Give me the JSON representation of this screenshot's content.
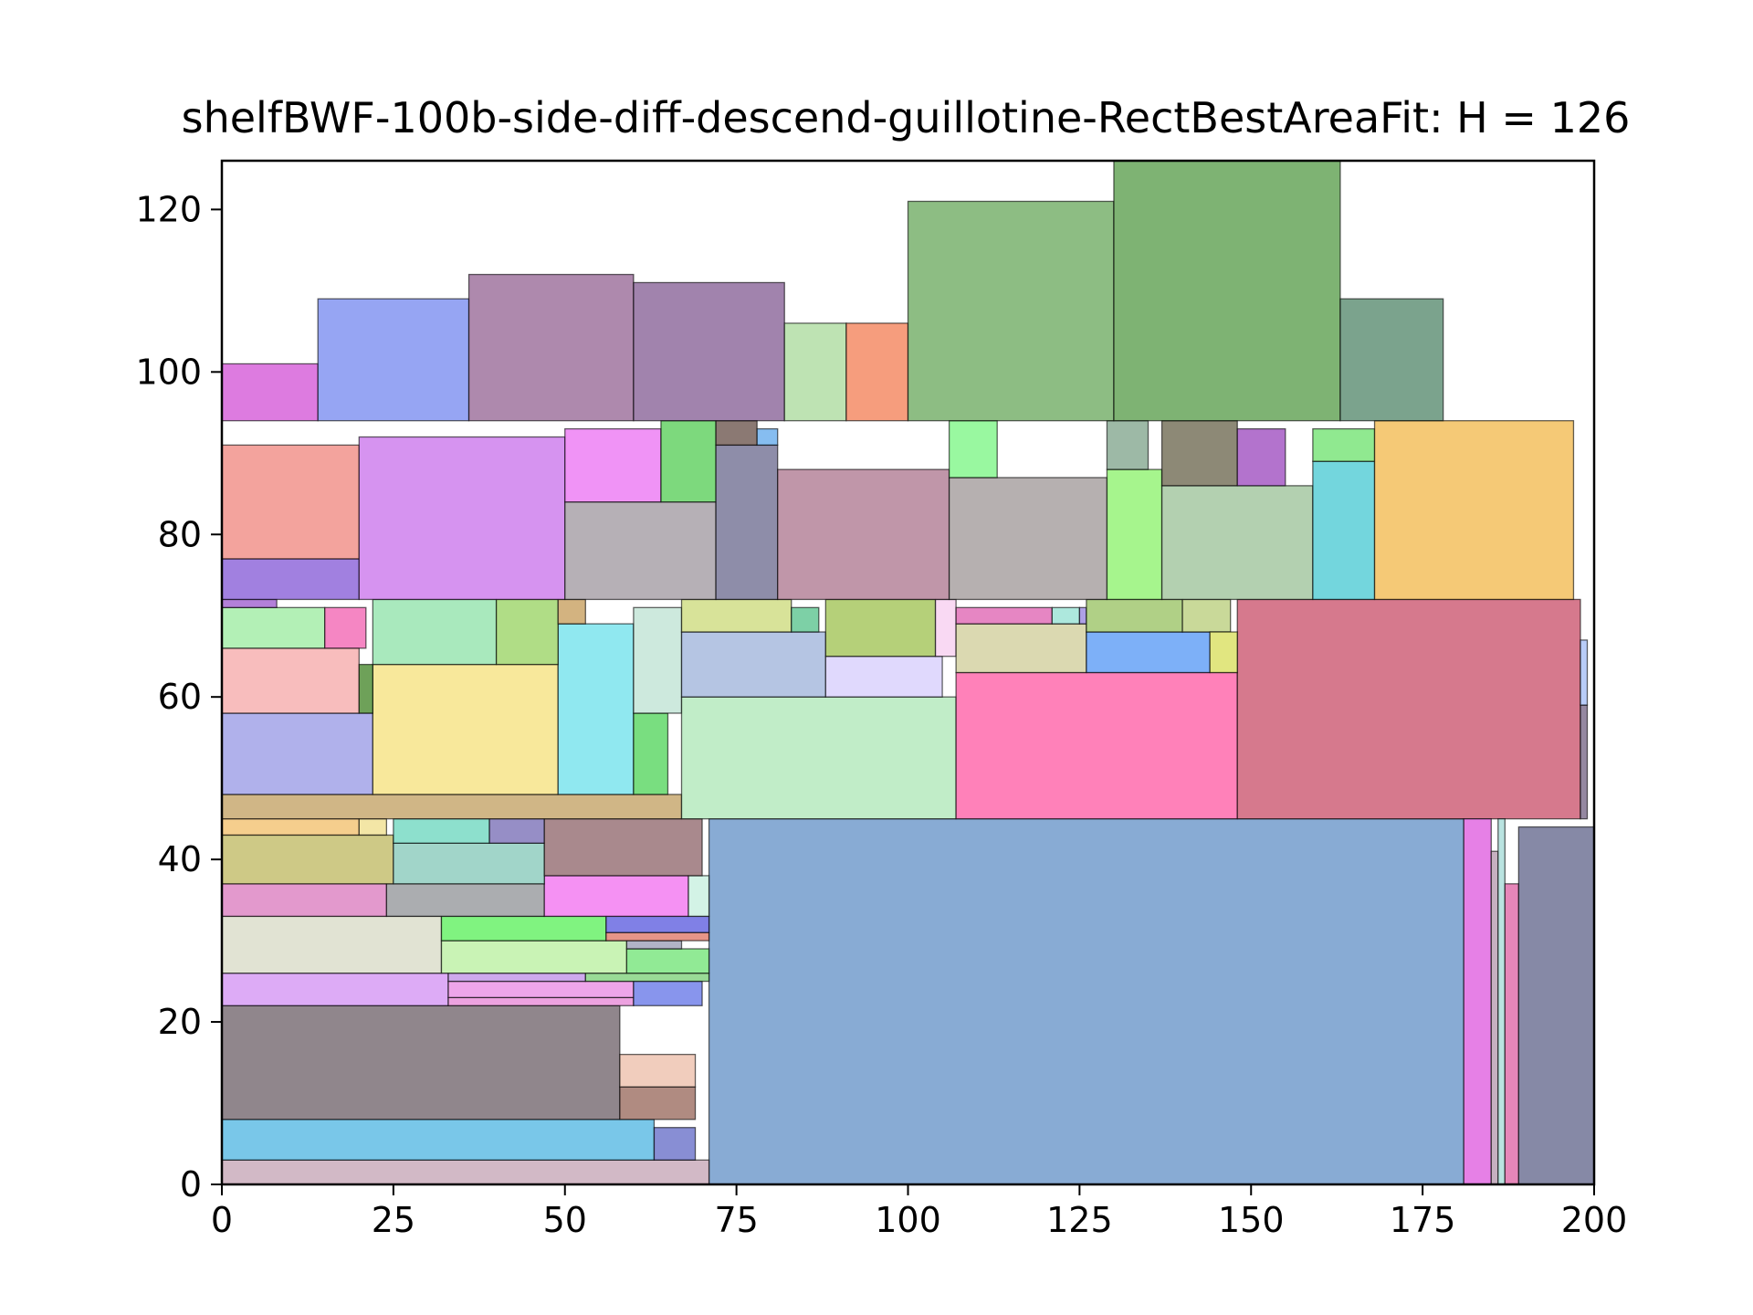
{
  "chart_data": {
    "type": "rectangle-packing",
    "title": "shelfBWF-100b-side-diff-descend-guillotine-RectBestAreaFit: H = 126",
    "xlabel": "",
    "ylabel": "",
    "xlim": [
      0,
      200
    ],
    "ylim": [
      0,
      126
    ],
    "xticks": [
      0,
      25,
      50,
      75,
      100,
      125,
      150,
      175,
      200
    ],
    "yticks": [
      0,
      20,
      40,
      60,
      80,
      100,
      120
    ],
    "xtick_labels": [
      "0",
      "25",
      "50",
      "75",
      "100",
      "125",
      "150",
      "175",
      "200"
    ],
    "ytick_labels": [
      "0",
      "20",
      "40",
      "60",
      "80",
      "100",
      "120"
    ],
    "grid": false,
    "rects": [
      {
        "x": 71,
        "y": 0,
        "w": 110,
        "h": 45,
        "color": "#6a96c9"
      },
      {
        "x": 0,
        "y": 0,
        "w": 71,
        "h": 3,
        "color": "#c7a8b8"
      },
      {
        "x": 0,
        "y": 3,
        "w": 63,
        "h": 5,
        "color": "#58b9e4"
      },
      {
        "x": 63,
        "y": 3,
        "w": 6,
        "h": 4,
        "color": "#6a72c9"
      },
      {
        "x": 0,
        "y": 8,
        "w": 58,
        "h": 14,
        "color": "#74686f"
      },
      {
        "x": 58,
        "y": 8,
        "w": 11,
        "h": 4,
        "color": "#9c6e61"
      },
      {
        "x": 58,
        "y": 12,
        "w": 11,
        "h": 4,
        "color": "#edc0ad"
      },
      {
        "x": 0,
        "y": 22,
        "w": 33,
        "h": 4,
        "color": "#d496f4"
      },
      {
        "x": 33,
        "y": 22,
        "w": 27,
        "h": 1,
        "color": "#e88bd8"
      },
      {
        "x": 33,
        "y": 23,
        "w": 27,
        "h": 2,
        "color": "#ea8fe5"
      },
      {
        "x": 60,
        "y": 22,
        "w": 10,
        "h": 3,
        "color": "#6a7ae8"
      },
      {
        "x": 33,
        "y": 25,
        "w": 20,
        "h": 1,
        "color": "#c294e8"
      },
      {
        "x": 53,
        "y": 25,
        "w": 18,
        "h": 1,
        "color": "#7fd27c"
      },
      {
        "x": 0,
        "y": 26,
        "w": 32,
        "h": 7,
        "color": "#dadcc8"
      },
      {
        "x": 32,
        "y": 26,
        "w": 27,
        "h": 4,
        "color": "#bcf0a2"
      },
      {
        "x": 59,
        "y": 26,
        "w": 12,
        "h": 3,
        "color": "#76e57b"
      },
      {
        "x": 59,
        "y": 29,
        "w": 8,
        "h": 1,
        "color": "#9ea0b8"
      },
      {
        "x": 32,
        "y": 30,
        "w": 24,
        "h": 3,
        "color": "#60f060"
      },
      {
        "x": 56,
        "y": 30,
        "w": 15,
        "h": 1,
        "color": "#e07a6a"
      },
      {
        "x": 56,
        "y": 31,
        "w": 15,
        "h": 2,
        "color": "#6060e0"
      },
      {
        "x": 0,
        "y": 33,
        "w": 24,
        "h": 4,
        "color": "#dc80c0"
      },
      {
        "x": 24,
        "y": 33,
        "w": 23,
        "h": 4,
        "color": "#96989c"
      },
      {
        "x": 47,
        "y": 33,
        "w": 21,
        "h": 5,
        "color": "#f276f0"
      },
      {
        "x": 68,
        "y": 33,
        "w": 3,
        "h": 5,
        "color": "#c8f0e0"
      },
      {
        "x": 0,
        "y": 37,
        "w": 25,
        "h": 6,
        "color": "#c2bc68"
      },
      {
        "x": 25,
        "y": 37,
        "w": 22,
        "h": 5,
        "color": "#8acbbc"
      },
      {
        "x": 25,
        "y": 42,
        "w": 14,
        "h": 3,
        "color": "#70d8c0"
      },
      {
        "x": 39,
        "y": 42,
        "w": 8,
        "h": 3,
        "color": "#7c72b8"
      },
      {
        "x": 47,
        "y": 38,
        "w": 23,
        "h": 7,
        "color": "#946c70"
      },
      {
        "x": 0,
        "y": 43,
        "w": 20,
        "h": 2,
        "color": "#f2c270"
      },
      {
        "x": 20,
        "y": 43,
        "w": 4,
        "h": 2,
        "color": "#f0e090"
      },
      {
        "x": 0,
        "y": 45,
        "w": 67,
        "h": 3,
        "color": "#c4a468"
      },
      {
        "x": 0,
        "y": 48,
        "w": 22,
        "h": 10,
        "color": "#9c9ee6"
      },
      {
        "x": 22,
        "y": 48,
        "w": 27,
        "h": 16,
        "color": "#f6e282"
      },
      {
        "x": 49,
        "y": 48,
        "w": 11,
        "h": 21,
        "color": "#74e2ec"
      },
      {
        "x": 60,
        "y": 48,
        "w": 5,
        "h": 10,
        "color": "#58d660"
      },
      {
        "x": 60,
        "y": 58,
        "w": 7,
        "h": 13,
        "color": "#c0e4d4"
      },
      {
        "x": 0,
        "y": 58,
        "w": 20,
        "h": 8,
        "color": "#f6acac"
      },
      {
        "x": 20,
        "y": 58,
        "w": 2,
        "h": 6,
        "color": "#4a8a30"
      },
      {
        "x": 0,
        "y": 66,
        "w": 15,
        "h": 5,
        "color": "#a0eca4"
      },
      {
        "x": 15,
        "y": 66,
        "w": 6,
        "h": 5,
        "color": "#f268b4"
      },
      {
        "x": 22,
        "y": 64,
        "w": 18,
        "h": 8,
        "color": "#94e4ac"
      },
      {
        "x": 40,
        "y": 64,
        "w": 9,
        "h": 8,
        "color": "#9cd468"
      },
      {
        "x": 49,
        "y": 69,
        "w": 4,
        "h": 3,
        "color": "#c8a060"
      },
      {
        "x": 0,
        "y": 71,
        "w": 8,
        "h": 1,
        "color": "#a060d0"
      },
      {
        "x": 67,
        "y": 45,
        "w": 40,
        "h": 15,
        "color": "#b2e8ba"
      },
      {
        "x": 107,
        "y": 45,
        "w": 41,
        "h": 18,
        "color": "#ff62a8"
      },
      {
        "x": 148,
        "y": 45,
        "w": 50,
        "h": 27,
        "color": "#cc5870"
      },
      {
        "x": 67,
        "y": 60,
        "w": 21,
        "h": 8,
        "color": "#a2b6dc"
      },
      {
        "x": 88,
        "y": 60,
        "w": 17,
        "h": 5,
        "color": "#d8d0fc"
      },
      {
        "x": 67,
        "y": 68,
        "w": 16,
        "h": 4,
        "color": "#cedc80"
      },
      {
        "x": 83,
        "y": 68,
        "w": 4,
        "h": 3,
        "color": "#5cc490"
      },
      {
        "x": 88,
        "y": 65,
        "w": 16,
        "h": 7,
        "color": "#a2c458"
      },
      {
        "x": 104,
        "y": 65,
        "w": 3,
        "h": 7,
        "color": "#f8d0f0"
      },
      {
        "x": 107,
        "y": 63,
        "w": 19,
        "h": 6,
        "color": "#d2d09e"
      },
      {
        "x": 107,
        "y": 69,
        "w": 14,
        "h": 2,
        "color": "#e068b4"
      },
      {
        "x": 121,
        "y": 69,
        "w": 4,
        "h": 2,
        "color": "#98e2d4"
      },
      {
        "x": 125,
        "y": 69,
        "w": 1,
        "h": 2,
        "color": "#9a8ae0"
      },
      {
        "x": 126,
        "y": 63,
        "w": 18,
        "h": 5,
        "color": "#5c9cf6"
      },
      {
        "x": 126,
        "y": 68,
        "w": 14,
        "h": 4,
        "color": "#9cc468"
      },
      {
        "x": 140,
        "y": 68,
        "w": 7,
        "h": 4,
        "color": "#bcd080"
      },
      {
        "x": 144,
        "y": 63,
        "w": 4,
        "h": 5,
        "color": "#dae060"
      },
      {
        "x": 181,
        "y": 0,
        "w": 4,
        "h": 45,
        "color": "#e060e0"
      },
      {
        "x": 185,
        "y": 0,
        "w": 1,
        "h": 41,
        "color": "#b89cb0"
      },
      {
        "x": 186,
        "y": 0,
        "w": 1,
        "h": 45,
        "color": "#a8dcd8"
      },
      {
        "x": 187,
        "y": 0,
        "w": 2,
        "h": 37,
        "color": "#e068a8"
      },
      {
        "x": 189,
        "y": 0,
        "w": 12,
        "h": 44,
        "color": "#686c90"
      },
      {
        "x": 198,
        "y": 45,
        "w": 1,
        "h": 14,
        "color": "#7a6a8a"
      },
      {
        "x": 198,
        "y": 59,
        "w": 1,
        "h": 8,
        "color": "#a8c0f8"
      },
      {
        "x": 0,
        "y": 72,
        "w": 20,
        "h": 5,
        "color": "#8a60d8"
      },
      {
        "x": 0,
        "y": 77,
        "w": 20,
        "h": 14,
        "color": "#f08c84"
      },
      {
        "x": 20,
        "y": 72,
        "w": 30,
        "h": 20,
        "color": "#cc78ec"
      },
      {
        "x": 50,
        "y": 72,
        "w": 22,
        "h": 12,
        "color": "#a49ca4"
      },
      {
        "x": 50,
        "y": 84,
        "w": 14,
        "h": 9,
        "color": "#ec78f4"
      },
      {
        "x": 64,
        "y": 84,
        "w": 8,
        "h": 10,
        "color": "#5cd05c"
      },
      {
        "x": 72,
        "y": 72,
        "w": 9,
        "h": 19,
        "color": "#727094"
      },
      {
        "x": 72,
        "y": 91,
        "w": 6,
        "h": 3,
        "color": "#6e5850"
      },
      {
        "x": 78,
        "y": 91,
        "w": 3,
        "h": 2,
        "color": "#68acec"
      },
      {
        "x": 81,
        "y": 72,
        "w": 25,
        "h": 16,
        "color": "#b07c94"
      },
      {
        "x": 106,
        "y": 72,
        "w": 23,
        "h": 15,
        "color": "#a49c9c"
      },
      {
        "x": 106,
        "y": 87,
        "w": 7,
        "h": 7,
        "color": "#80f688"
      },
      {
        "x": 129,
        "y": 72,
        "w": 8,
        "h": 16,
        "color": "#90f270"
      },
      {
        "x": 129,
        "y": 88,
        "w": 6,
        "h": 6,
        "color": "#84a890"
      },
      {
        "x": 137,
        "y": 72,
        "w": 22,
        "h": 14,
        "color": "#a0c49c"
      },
      {
        "x": 137,
        "y": 86,
        "w": 11,
        "h": 8,
        "color": "#706c54"
      },
      {
        "x": 148,
        "y": 86,
        "w": 7,
        "h": 7,
        "color": "#a050c0"
      },
      {
        "x": 159,
        "y": 72,
        "w": 9,
        "h": 17,
        "color": "#50ccd4"
      },
      {
        "x": 159,
        "y": 89,
        "w": 9,
        "h": 4,
        "color": "#74e474"
      },
      {
        "x": 168,
        "y": 72,
        "w": 29,
        "h": 22,
        "color": "#f2bc54"
      },
      {
        "x": 0,
        "y": 94,
        "w": 14,
        "h": 7,
        "color": "#d45ad8"
      },
      {
        "x": 14,
        "y": 94,
        "w": 22,
        "h": 15,
        "color": "#7c8ef0"
      },
      {
        "x": 36,
        "y": 94,
        "w": 24,
        "h": 18,
        "color": "#9a6c98"
      },
      {
        "x": 60,
        "y": 94,
        "w": 22,
        "h": 17,
        "color": "#8a6498"
      },
      {
        "x": 82,
        "y": 94,
        "w": 9,
        "h": 12,
        "color": "#aedca0"
      },
      {
        "x": 91,
        "y": 94,
        "w": 9,
        "h": 12,
        "color": "#f4845c"
      },
      {
        "x": 100,
        "y": 94,
        "w": 30,
        "h": 27,
        "color": "#70ac64"
      },
      {
        "x": 130,
        "y": 94,
        "w": 33,
        "h": 32,
        "color": "#5ea050"
      },
      {
        "x": 163,
        "y": 94,
        "w": 15,
        "h": 15,
        "color": "#5a8c70"
      }
    ]
  }
}
